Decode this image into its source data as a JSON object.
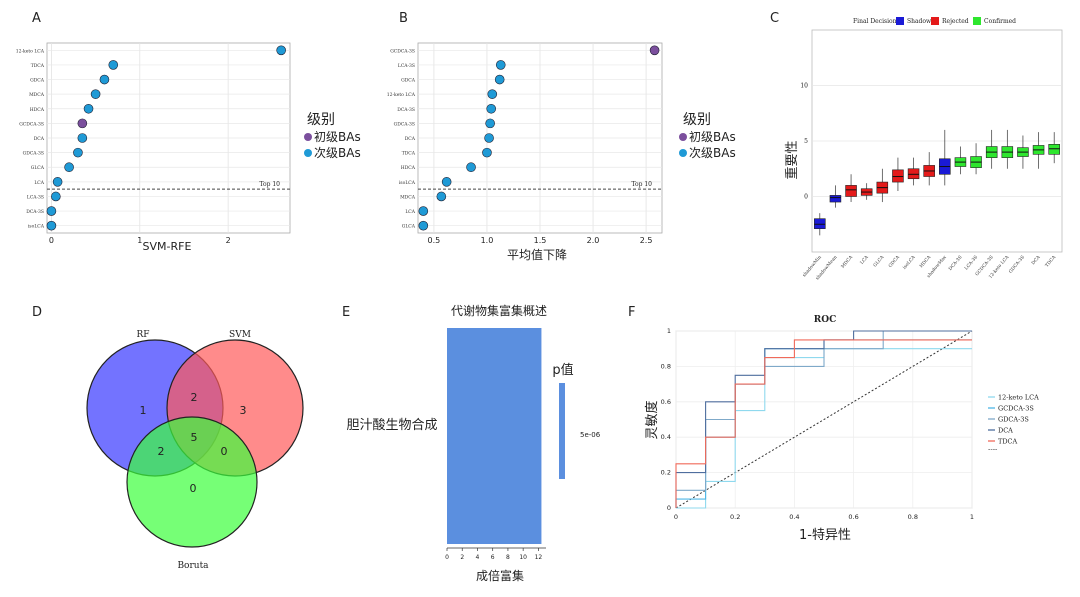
{
  "panels": {
    "A": {
      "letter": "A",
      "type": "scatter",
      "features": [
        "12-keto LCA",
        "TDCA",
        "GDCA",
        "MDCA",
        "HDCA",
        "GCDCA-3S",
        "DCA",
        "GDCA-3S",
        "GLCA",
        "LCA",
        "LCA-3S",
        "DCA-3S",
        "isoLCA"
      ],
      "values": [
        2.6,
        0.7,
        0.6,
        0.5,
        0.42,
        0.35,
        0.35,
        0.3,
        0.2,
        0.07,
        0.05,
        0.0,
        0.0
      ],
      "groups": [
        "secondary",
        "secondary",
        "secondary",
        "secondary",
        "secondary",
        "primary",
        "secondary",
        "secondary",
        "secondary",
        "secondary",
        "secondary",
        "secondary",
        "secondary"
      ],
      "xlim": [
        -0.05,
        2.7
      ],
      "xticks": [
        "0",
        "1",
        "2"
      ],
      "xlabel": "SVM-RFE",
      "top10_label": "Top 10",
      "cutoff_after_index": 9
    },
    "B": {
      "letter": "B",
      "type": "scatter",
      "features": [
        "GCDCA-3S",
        "LCA-3S",
        "GDCA",
        "12-keto LCA",
        "DCA-3S",
        "GDCA-3S",
        "DCA",
        "TDCA",
        "HDCA",
        "isoLCA",
        "MDCA",
        "LCA",
        "GLCA"
      ],
      "values": [
        2.58,
        1.13,
        1.12,
        1.05,
        1.04,
        1.03,
        1.02,
        1.0,
        0.85,
        0.62,
        0.57,
        0.4,
        0.4
      ],
      "groups": [
        "primary",
        "secondary",
        "secondary",
        "secondary",
        "secondary",
        "secondary",
        "secondary",
        "secondary",
        "secondary",
        "secondary",
        "secondary",
        "secondary",
        "secondary"
      ],
      "xlim": [
        0.35,
        2.65
      ],
      "xticks": [
        "0.5",
        "1.0",
        "1.5",
        "2.0",
        "2.5"
      ],
      "xlabel": "平均值下降",
      "top10_label": "Top 10",
      "cutoff_after_index": 9
    },
    "legendAB": {
      "title": "级别",
      "items": [
        "初级BAs",
        "次级BAs"
      ],
      "colors": [
        "#7b4f9d",
        "#1f9ad6"
      ]
    },
    "C": {
      "letter": "C",
      "type": "boxplot",
      "legend_title": "Final Decision",
      "legend_items": [
        "Shadow",
        "Rejected",
        "Confirmed"
      ],
      "legend_colors": [
        "#1a1ad6",
        "#e41a1a",
        "#2ee62e"
      ],
      "ylabel": "重要性",
      "yticks": [
        "0",
        "5",
        "10"
      ],
      "ylim": [
        -5,
        15
      ],
      "categories": [
        "shadowMin",
        "shadowMean",
        "MDCA",
        "LCA",
        "GLCA",
        "GDCA",
        "isoLCA",
        "HDCA",
        "shadowMax",
        "DCA-3S",
        "LCA-3S",
        "GCDCA-3S",
        "12-keto LCA",
        "GDCA-3S",
        "DCA",
        "TDCA"
      ],
      "decision": [
        "Shadow",
        "Shadow",
        "Rejected",
        "Rejected",
        "Rejected",
        "Rejected",
        "Rejected",
        "Rejected",
        "Shadow",
        "Confirmed",
        "Confirmed",
        "Confirmed",
        "Confirmed",
        "Confirmed",
        "Confirmed",
        "Confirmed"
      ],
      "boxes": [
        {
          "min": -3.5,
          "q1": -2.9,
          "med": -2.5,
          "q3": -2.0,
          "max": -1.5
        },
        {
          "min": -1.0,
          "q1": -0.5,
          "med": -0.1,
          "q3": 0.1,
          "max": 1.0
        },
        {
          "min": -0.5,
          "q1": 0.0,
          "med": 0.6,
          "q3": 1.0,
          "max": 2.0
        },
        {
          "min": -0.3,
          "q1": 0.1,
          "med": 0.4,
          "q3": 0.7,
          "max": 1.2
        },
        {
          "min": -0.5,
          "q1": 0.3,
          "med": 0.8,
          "q3": 1.3,
          "max": 2.5
        },
        {
          "min": 0.5,
          "q1": 1.3,
          "med": 1.8,
          "q3": 2.4,
          "max": 3.5
        },
        {
          "min": 1.0,
          "q1": 1.6,
          "med": 2.0,
          "q3": 2.5,
          "max": 3.5
        },
        {
          "min": 1.0,
          "q1": 1.8,
          "med": 2.3,
          "q3": 2.8,
          "max": 4.0
        },
        {
          "min": 1.0,
          "q1": 2.0,
          "med": 2.7,
          "q3": 3.4,
          "max": 6.0
        },
        {
          "min": 2.0,
          "q1": 2.7,
          "med": 3.1,
          "q3": 3.5,
          "max": 4.5
        },
        {
          "min": 2.0,
          "q1": 2.6,
          "med": 3.1,
          "q3": 3.6,
          "max": 4.8
        },
        {
          "min": 2.5,
          "q1": 3.5,
          "med": 4.0,
          "q3": 4.5,
          "max": 6.0
        },
        {
          "min": 2.5,
          "q1": 3.5,
          "med": 4.0,
          "q3": 4.5,
          "max": 6.0
        },
        {
          "min": 2.5,
          "q1": 3.6,
          "med": 4.0,
          "q3": 4.4,
          "max": 5.5
        },
        {
          "min": 2.5,
          "q1": 3.8,
          "med": 4.2,
          "q3": 4.6,
          "max": 5.8
        },
        {
          "min": 3.0,
          "q1": 3.8,
          "med": 4.3,
          "q3": 4.7,
          "max": 5.8
        }
      ]
    },
    "D": {
      "letter": "D",
      "type": "venn",
      "sets": [
        "RF",
        "SVM",
        "Boruta"
      ],
      "counts": {
        "rf_only": "1",
        "svm_only": "3",
        "boruta_only": "0",
        "rf_svm": "2",
        "rf_boruta": "2",
        "svm_boruta": "0",
        "all": "5"
      }
    },
    "E": {
      "letter": "E",
      "type": "bar",
      "title": "代谢物集富集概述",
      "category": "胆汁酸生物合成",
      "value": 12.4,
      "xlim": [
        0,
        13
      ],
      "xticks": [
        "0",
        "2",
        "4",
        "6",
        "8",
        "10",
        "12"
      ],
      "xlabel": "成倍富集",
      "legend_title": "p值",
      "legend_value": "5e-06",
      "color": "#5b8fdf"
    },
    "F": {
      "letter": "F",
      "type": "line",
      "title": "ROC",
      "xlabel": "1-特异性",
      "ylabel": "灵敏度",
      "ticks": [
        "0",
        "0.2",
        "0.4",
        "0.6",
        "0.8",
        "1"
      ],
      "series": [
        {
          "name": "12-keto LCA",
          "color": "#8fd9ee",
          "x": [
            0,
            0.1,
            0.1,
            0.2,
            0.2,
            0.3,
            0.3,
            0.5,
            0.5,
            1.0
          ],
          "y": [
            0,
            0,
            0.15,
            0.15,
            0.55,
            0.55,
            0.85,
            0.85,
            0.9,
            0.9
          ]
        },
        {
          "name": "GCDCA-3S",
          "color": "#4fb7e6",
          "x": [
            0,
            0,
            0.1,
            0.1,
            0.2,
            0.2,
            0.3,
            0.3,
            0.5,
            0.5,
            1.0
          ],
          "y": [
            0,
            0.05,
            0.05,
            0.4,
            0.4,
            0.7,
            0.7,
            0.9,
            0.9,
            0.95,
            0.95
          ]
        },
        {
          "name": "GDCA-3S",
          "color": "#7fa9c9",
          "x": [
            0,
            0,
            0.1,
            0.1,
            0.2,
            0.2,
            0.3,
            0.3,
            0.5,
            0.5,
            0.7,
            0.7,
            1.0
          ],
          "y": [
            0,
            0.1,
            0.1,
            0.5,
            0.5,
            0.7,
            0.7,
            0.8,
            0.8,
            0.9,
            0.9,
            1.0,
            1.0
          ]
        },
        {
          "name": "DCA",
          "color": "#4f6e9e",
          "x": [
            0,
            0,
            0.1,
            0.1,
            0.2,
            0.2,
            0.3,
            0.3,
            0.5,
            0.5,
            0.6,
            0.6,
            1.0
          ],
          "y": [
            0,
            0.2,
            0.2,
            0.6,
            0.6,
            0.75,
            0.75,
            0.9,
            0.9,
            0.95,
            0.95,
            1.0,
            1.0
          ]
        },
        {
          "name": "TDCA",
          "color": "#f06a5a",
          "x": [
            0,
            0,
            0.1,
            0.1,
            0.2,
            0.2,
            0.3,
            0.3,
            0.4,
            0.4,
            1.0
          ],
          "y": [
            0,
            0.25,
            0.25,
            0.4,
            0.4,
            0.7,
            0.7,
            0.85,
            0.85,
            0.95,
            0.95
          ]
        }
      ],
      "extra_legend": "----"
    }
  }
}
